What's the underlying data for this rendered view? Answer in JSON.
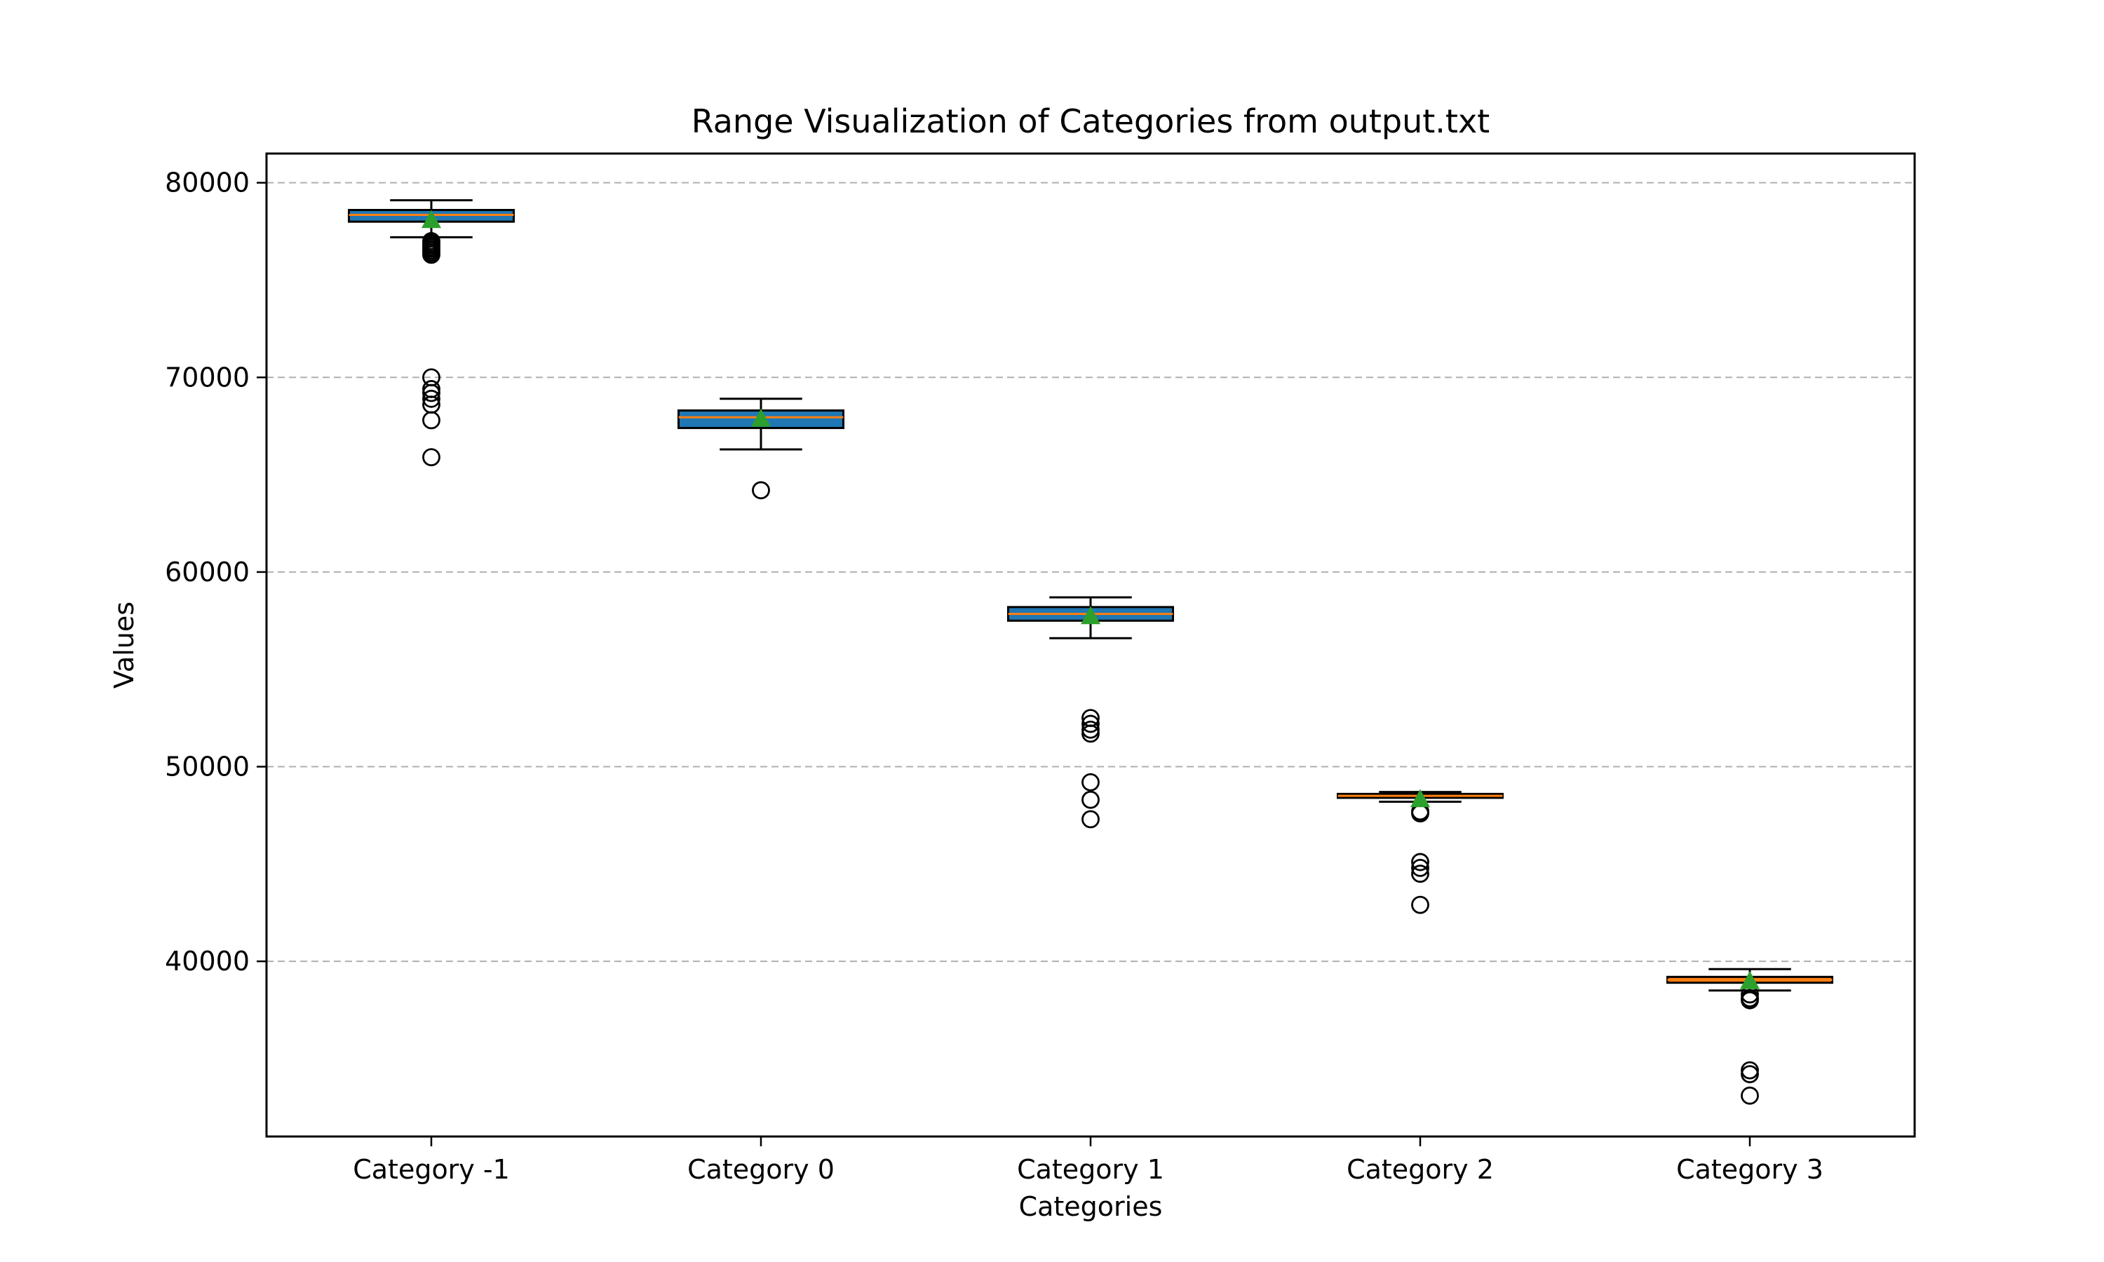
{
  "chart_data": {
    "type": "box",
    "title": "Range Visualization of Categories from output.txt",
    "xlabel": "Categories",
    "ylabel": "Values",
    "ylim": [
      31000,
      81500
    ],
    "yticks": [
      40000,
      50000,
      60000,
      70000,
      80000
    ],
    "grid": "horizontal dashed",
    "legend": "none",
    "categories": [
      "Category -1",
      "Category 0",
      "Category 1",
      "Category 2",
      "Category 3"
    ],
    "boxes": [
      {
        "category": "Category -1",
        "whisker_low": 77200,
        "q1": 78000,
        "median": 78350,
        "q3": 78600,
        "whisker_high": 79100,
        "mean": 78100,
        "fill": "#1f77b4",
        "outliers": [
          76300,
          76400,
          76500,
          76600,
          76700,
          76800,
          76900,
          77000,
          70000,
          69400,
          69200,
          68900,
          68600,
          67800,
          65900
        ]
      },
      {
        "category": "Category 0",
        "whisker_low": 66300,
        "q1": 67400,
        "median": 67950,
        "q3": 68300,
        "whisker_high": 68900,
        "mean": 67900,
        "fill": "#1f77b4",
        "outliers": [
          64200
        ]
      },
      {
        "category": "Category 1",
        "whisker_low": 56600,
        "q1": 57500,
        "median": 57850,
        "q3": 58200,
        "whisker_high": 58700,
        "mean": 57750,
        "fill": "#1f77b4",
        "outliers": [
          52500,
          52200,
          51900,
          51700,
          49200,
          48300,
          47300
        ]
      },
      {
        "category": "Category 2",
        "whisker_low": 48200,
        "q1": 48400,
        "median": 48500,
        "q3": 48600,
        "whisker_high": 48700,
        "mean": 48350,
        "fill": "#ff7f0e",
        "outliers": [
          47700,
          47600,
          45100,
          44800,
          44500,
          42900
        ]
      },
      {
        "category": "Category 3",
        "whisker_low": 38500,
        "q1": 38900,
        "median": 39050,
        "q3": 39200,
        "whisker_high": 39600,
        "mean": 39000,
        "fill": "#ff7f0e",
        "outliers": [
          38300,
          38100,
          38000,
          34400,
          34200,
          33100
        ]
      }
    ],
    "colors": {
      "median": "#ff7f0e",
      "mean_marker": "#2ca02c",
      "grid": "#b0b0b0",
      "axis": "#000000"
    }
  }
}
